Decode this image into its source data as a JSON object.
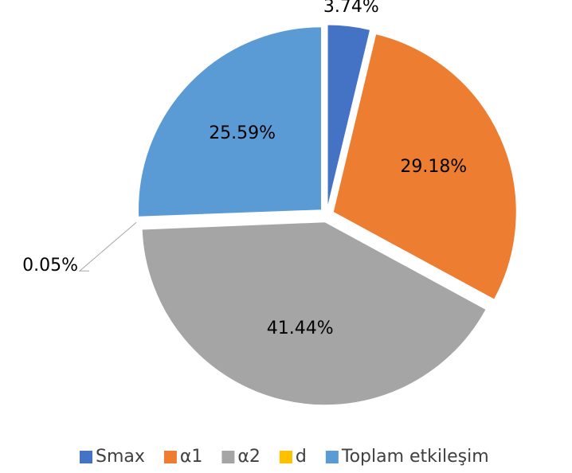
{
  "chart_data": {
    "type": "pie",
    "categories": [
      "Smax",
      "α1",
      "α2",
      "d",
      "Toplam etkileşim"
    ],
    "values": [
      3.74,
      29.18,
      41.44,
      0.05,
      25.59
    ],
    "value_labels": [
      "3.74%",
      "29.18%",
      "41.44%",
      "0.05%",
      "25.59%"
    ],
    "colors": [
      "#4472c4",
      "#ed7d31",
      "#a5a5a5",
      "#ffc000",
      "#5b9bd5"
    ],
    "legend": "bottom"
  }
}
